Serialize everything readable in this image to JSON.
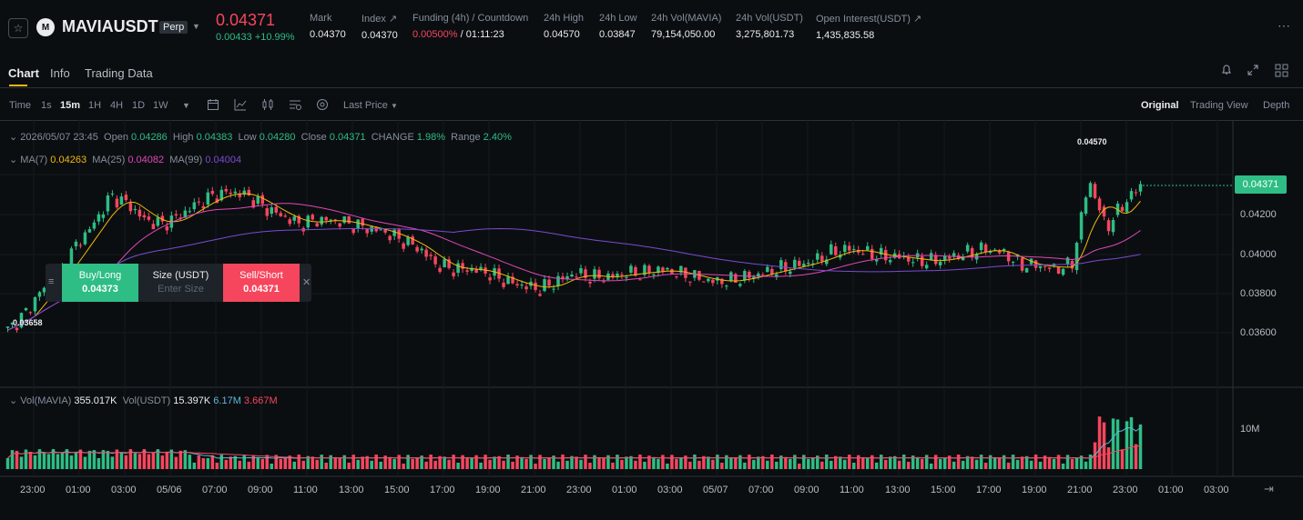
{
  "header": {
    "symbol": "MAVIAUSDT",
    "contract_type": "Perp",
    "last_price": "0.04371",
    "change": "0.00433 +10.99%",
    "stats": [
      {
        "label": "Mark",
        "value": "0.04370"
      },
      {
        "label": "Index ↗",
        "value": "0.04370"
      },
      {
        "label": "Funding (4h) / Countdown",
        "value_red": "0.00500%",
        "value": " / 01:11:23"
      },
      {
        "label": "24h High",
        "value": "0.04570"
      },
      {
        "label": "24h Low",
        "value": "0.03847"
      },
      {
        "label": "24h Vol(MAVIA)",
        "value": "79,154,050.00"
      },
      {
        "label": "24h Vol(USDT)",
        "value": "3,275,801.73"
      },
      {
        "label": "Open Interest(USDT) ↗",
        "value": "1,435,835.58"
      }
    ]
  },
  "tabs": [
    "Chart",
    "Info",
    "Trading Data"
  ],
  "toolbar": {
    "intervals": [
      "Time",
      "1s",
      "15m",
      "1H",
      "4H",
      "1D",
      "1W"
    ],
    "active_interval": "15m",
    "price_type": "Last Price",
    "views": [
      "Original",
      "Trading View",
      "Depth"
    ],
    "active_view": "Original"
  },
  "legend": {
    "datetime": "2026/05/07 23:45",
    "open_label": "Open",
    "open": "0.04286",
    "high_label": "High",
    "high": "0.04383",
    "low_label": "Low",
    "low": "0.04280",
    "close_label": "Close",
    "close": "0.04371",
    "change_label": "CHANGE",
    "change": "1.98%",
    "range_label": "Range",
    "range": "2.40%",
    "ma7_label": "MA(7)",
    "ma7": "0.04263",
    "ma25_label": "MA(25)",
    "ma25": "0.04082",
    "ma99_label": "MA(99)",
    "ma99": "0.04004"
  },
  "volume_legend": {
    "label": "Vol(MAVIA)",
    "value": "355.017K",
    "usdt_label": "Vol(USDT)",
    "usdt": "15.397K",
    "ma1": "6.17M",
    "ma2": "3.667M"
  },
  "trade_box": {
    "buy_label": "Buy/Long",
    "buy_price": "0.04373",
    "size_label": "Size (USDT)",
    "size_placeholder": "Enter Size",
    "sell_label": "Sell/Short",
    "sell_price": "0.04371"
  },
  "price_badge": "0.04371",
  "high_marker": "0.04570",
  "low_marker": "0.03658",
  "y_ticks": [
    "0.04200",
    "0.04000",
    "0.03800",
    "0.03600"
  ],
  "vol_tick": "10M",
  "x_ticks": [
    "23:00",
    "01:00",
    "03:00",
    "05/06",
    "07:00",
    "09:00",
    "11:00",
    "13:00",
    "15:00",
    "17:00",
    "19:00",
    "21:00",
    "23:00",
    "01:00",
    "03:00",
    "05/07",
    "07:00",
    "09:00",
    "11:00",
    "13:00",
    "15:00",
    "17:00",
    "19:00",
    "21:00",
    "23:00",
    "01:00",
    "03:00"
  ],
  "colors": {
    "up": "#2ebd85",
    "down": "#f6465d",
    "ma7": "#f0b90b",
    "ma25": "#e048b8",
    "ma99": "#7a4bd0",
    "accent": "#f0b90b"
  },
  "chart_data": {
    "type": "candlestick",
    "interval": "15m",
    "ylim": [
      0.0346,
      0.0463
    ],
    "close_series": [
      0.0366,
      0.0374,
      0.0386,
      0.0394,
      0.0408,
      0.0418,
      0.0432,
      0.0428,
      0.042,
      0.0418,
      0.0422,
      0.0428,
      0.0432,
      0.0434,
      0.0432,
      0.0426,
      0.0422,
      0.0418,
      0.042,
      0.042,
      0.0418,
      0.0416,
      0.0414,
      0.041,
      0.0406,
      0.0398,
      0.0396,
      0.0396,
      0.0394,
      0.039,
      0.0388,
      0.0386,
      0.039,
      0.0394,
      0.0392,
      0.0392,
      0.0394,
      0.0394,
      0.0396,
      0.0394,
      0.0392,
      0.039,
      0.039,
      0.0392,
      0.0394,
      0.0396,
      0.0398,
      0.04,
      0.0404,
      0.0406,
      0.0404,
      0.0402,
      0.0402,
      0.04,
      0.04,
      0.0402,
      0.0404,
      0.0406,
      0.0404,
      0.0398,
      0.0398,
      0.0396,
      0.0398,
      0.044,
      0.0416,
      0.0428,
      0.0437
    ],
    "high": 0.0457,
    "low": 0.03658,
    "last": 0.04371
  }
}
